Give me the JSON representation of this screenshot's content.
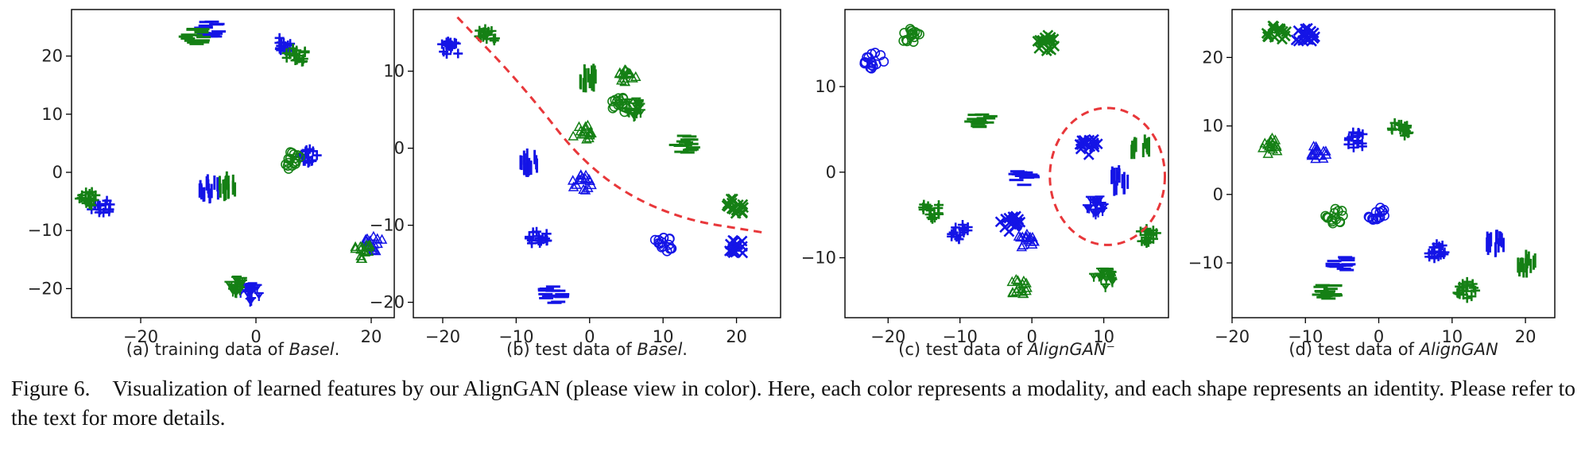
{
  "figure_caption": {
    "label": "Figure 6.",
    "text": "Visualization of learned features by our AlignGAN (please view in color). Here, each color represents a modality, and each shape represents an identity. Please refer to the text for more details."
  },
  "colors": {
    "modality_a": "#1414e6",
    "modality_b": "#158015",
    "annotation": "#e8373a"
  },
  "chart_data": [
    {
      "type": "scatter",
      "subcaption_prefix": "(a) training data of ",
      "subcaption_method": "Basel",
      "subcaption_suffix": ".",
      "xlim": [
        -32,
        24
      ],
      "ylim": [
        -25,
        28
      ],
      "xticks": [
        -20,
        0,
        20
      ],
      "yticks": [
        -20,
        -10,
        0,
        10,
        20
      ],
      "series": [
        {
          "name": "modality-blue",
          "color": "#1414e6",
          "clusters": [
            {
              "marker": "_",
              "x": -8,
              "y": 24.5
            },
            {
              "marker": "+",
              "x": 5,
              "y": 22
            },
            {
              "marker": "+",
              "x": 9,
              "y": 3
            },
            {
              "marker": "|",
              "x": -8,
              "y": -3
            },
            {
              "marker": "+",
              "x": -27,
              "y": -6
            },
            {
              "marker": "v",
              "x": -1,
              "y": -21
            },
            {
              "marker": "^",
              "x": 20.5,
              "y": -12.5
            }
          ]
        },
        {
          "name": "modality-green",
          "color": "#158015",
          "clusters": [
            {
              "marker": "_",
              "x": -10.5,
              "y": 23.5
            },
            {
              "marker": "+",
              "x": 7,
              "y": 20
            },
            {
              "marker": "o",
              "x": 6,
              "y": 2
            },
            {
              "marker": "|",
              "x": -5,
              "y": -2.5
            },
            {
              "marker": "+",
              "x": -29,
              "y": -4.5
            },
            {
              "marker": "v",
              "x": -3,
              "y": -19.5
            },
            {
              "marker": "^",
              "x": 18.5,
              "y": -13.5
            }
          ]
        }
      ]
    },
    {
      "type": "scatter",
      "subcaption_prefix": "(b) test data of ",
      "subcaption_method": "Basel",
      "subcaption_suffix": ".",
      "xlim": [
        -24,
        26
      ],
      "ylim": [
        -22,
        18
      ],
      "xticks": [
        -20,
        -10,
        0,
        10,
        20
      ],
      "yticks": [
        -20,
        -10,
        0,
        10
      ],
      "annotation": {
        "type": "dashed-curve",
        "points": [
          [
            -18,
            17
          ],
          [
            -9,
            8
          ],
          [
            0,
            -3
          ],
          [
            11,
            -9
          ],
          [
            24,
            -11
          ]
        ]
      },
      "series": [
        {
          "name": "modality-blue",
          "color": "#1414e6",
          "clusters": [
            {
              "marker": "+",
              "x": -19,
              "y": 13
            },
            {
              "marker": "|",
              "x": -8,
              "y": -2
            },
            {
              "marker": "+",
              "x": -7,
              "y": -11.5
            },
            {
              "marker": "^",
              "x": -1,
              "y": -4.5
            },
            {
              "marker": "_",
              "x": -5,
              "y": -19
            },
            {
              "marker": "o",
              "x": 10,
              "y": -12.5
            },
            {
              "marker": "x",
              "x": 20,
              "y": -13
            }
          ]
        },
        {
          "name": "modality-green",
          "color": "#158015",
          "clusters": [
            {
              "marker": "+",
              "x": -14,
              "y": 14.5
            },
            {
              "marker": "|",
              "x": 0,
              "y": 9
            },
            {
              "marker": "o",
              "x": 4,
              "y": 5.5
            },
            {
              "marker": "^",
              "x": 5,
              "y": 9
            },
            {
              "marker": "v",
              "x": 6,
              "y": 5
            },
            {
              "marker": "^",
              "x": -1,
              "y": 2
            },
            {
              "marker": "_",
              "x": 13,
              "y": 0.5
            },
            {
              "marker": "x",
              "x": 20,
              "y": -7.5
            }
          ]
        }
      ]
    },
    {
      "type": "scatter",
      "subcaption_prefix": "(c) test data of ",
      "subcaption_method": "AlignGAN",
      "subcaption_suffix": "⁻",
      "xlim": [
        -26,
        19
      ],
      "ylim": [
        -17,
        19
      ],
      "xticks": [
        -20,
        -10,
        0,
        10
      ],
      "yticks": [
        -10,
        0,
        10
      ],
      "annotation": {
        "type": "dashed-circle",
        "cx": 10.5,
        "cy": -0.5,
        "r": 8
      },
      "series": [
        {
          "name": "modality-blue",
          "color": "#1414e6",
          "clusters": [
            {
              "marker": "o",
              "x": -22,
              "y": 13
            },
            {
              "marker": "_",
              "x": -1,
              "y": -0.5
            },
            {
              "marker": "x",
              "x": 8,
              "y": 3
            },
            {
              "marker": "|",
              "x": 12,
              "y": -1
            },
            {
              "marker": "v",
              "x": 9,
              "y": -4
            },
            {
              "marker": "+",
              "x": -10,
              "y": -7
            },
            {
              "marker": "^",
              "x": -1,
              "y": -8
            },
            {
              "marker": "x",
              "x": -3,
              "y": -6
            }
          ]
        },
        {
          "name": "modality-green",
          "color": "#158015",
          "clusters": [
            {
              "marker": "o",
              "x": -17,
              "y": 16
            },
            {
              "marker": "x",
              "x": 2,
              "y": 15
            },
            {
              "marker": "_",
              "x": -7,
              "y": 6
            },
            {
              "marker": "|",
              "x": 15,
              "y": 3
            },
            {
              "marker": "+",
              "x": -14,
              "y": -4.5
            },
            {
              "marker": "^",
              "x": -2,
              "y": -13.5
            },
            {
              "marker": "v",
              "x": 10,
              "y": -12.5
            },
            {
              "marker": "+",
              "x": 16,
              "y": -7.5
            }
          ]
        }
      ]
    },
    {
      "type": "scatter",
      "subcaption_prefix": "(d) test data of ",
      "subcaption_method": "AlignGAN",
      "subcaption_suffix": "",
      "xlim": [
        -20,
        24
      ],
      "ylim": [
        -18,
        27
      ],
      "xticks": [
        -20,
        -10,
        0,
        10,
        20
      ],
      "yticks": [
        -10,
        0,
        10,
        20
      ],
      "series": [
        {
          "name": "modality-blue",
          "color": "#1414e6",
          "clusters": [
            {
              "marker": "x",
              "x": -10,
              "y": 23
            },
            {
              "marker": "^",
              "x": -8.5,
              "y": 6
            },
            {
              "marker": "+",
              "x": -3,
              "y": 8
            },
            {
              "marker": "o",
              "x": 0,
              "y": -3
            },
            {
              "marker": "_",
              "x": -5,
              "y": -10
            },
            {
              "marker": "+",
              "x": 8,
              "y": -8.5
            },
            {
              "marker": "|",
              "x": 16,
              "y": -7
            }
          ]
        },
        {
          "name": "modality-green",
          "color": "#158015",
          "clusters": [
            {
              "marker": "x",
              "x": -14,
              "y": 23.5
            },
            {
              "marker": "^",
              "x": -15,
              "y": 7
            },
            {
              "marker": "+",
              "x": 3,
              "y": 9.5
            },
            {
              "marker": "o",
              "x": -6,
              "y": -3
            },
            {
              "marker": "_",
              "x": -7,
              "y": -14
            },
            {
              "marker": "+",
              "x": 12,
              "y": -14
            },
            {
              "marker": "|",
              "x": 20,
              "y": -10
            }
          ]
        }
      ]
    }
  ]
}
